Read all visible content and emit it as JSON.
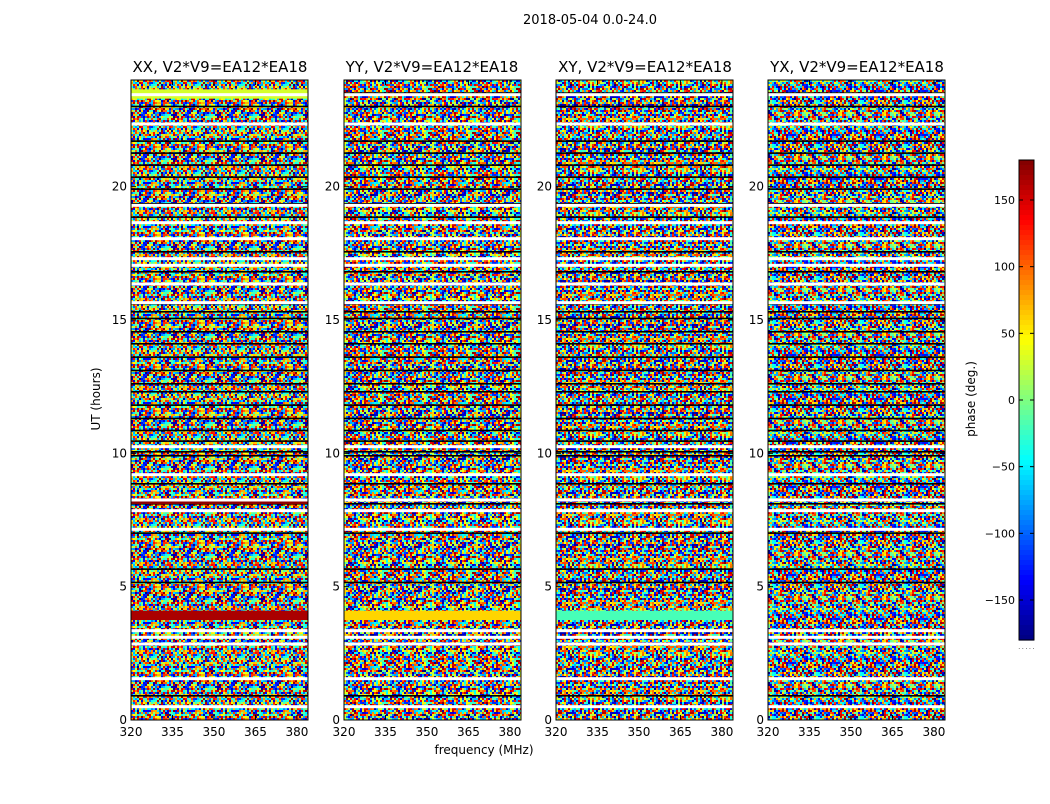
{
  "chart_data": {
    "type": "heatmap",
    "suptitle": "2018-05-04 0.0-24.0",
    "panels": [
      {
        "title": "XX, V2*V9=EA12*EA18"
      },
      {
        "title": "YY, V2*V9=EA12*EA18"
      },
      {
        "title": "XY, V2*V9=EA12*EA18"
      },
      {
        "title": "YX, V2*V9=EA12*EA18"
      }
    ],
    "xlabel": "frequency (MHz)",
    "ylabel": "UT (hours)",
    "xlim": [
      320,
      384
    ],
    "ylim": [
      0,
      24
    ],
    "x_ticks": [
      320,
      335,
      350,
      365,
      380
    ],
    "x_tick_labels": [
      "320",
      "335",
      "350",
      "365",
      "380"
    ],
    "y_ticks": [
      0,
      5,
      10,
      15,
      20
    ],
    "y_tick_labels": [
      "0",
      "5",
      "10",
      "15",
      "20"
    ],
    "colorbar": {
      "label": "phase (deg.)",
      "range": [
        -180,
        180
      ],
      "ticks": [
        -150,
        -100,
        -50,
        0,
        50,
        100,
        150
      ],
      "tick_labels": [
        "−150",
        "−100",
        "−50",
        "0",
        "50",
        "100",
        "150"
      ],
      "colormap": "jet",
      "under_mark": "....."
    },
    "flagged_rows_hours": [
      0.5,
      1.55,
      2.85,
      3.1,
      3.35,
      7.15,
      7.85,
      8.25,
      9.2,
      10.25,
      15.65,
      16.35,
      17.05,
      17.3,
      18.05,
      18.65,
      19.3,
      22.35,
      23.45
    ],
    "gap_rows_hours": [
      0.9,
      5.15,
      5.65,
      7.0,
      8.1,
      8.85,
      9.9,
      10.05,
      10.45,
      10.85,
      11.3,
      11.8,
      12.3,
      12.6,
      13.1,
      13.6,
      14.1,
      14.55,
      15.05,
      15.3,
      15.6,
      16.8,
      17.55,
      18.85,
      19.35,
      19.9,
      20.35,
      20.8,
      21.25,
      21.7,
      23.0,
      23.5
    ],
    "coherent_bands": [
      {
        "panel": "XX",
        "hours": [
          3.75,
          4.1
        ],
        "phase_deg": 165
      },
      {
        "panel": "YY",
        "hours": [
          3.75,
          4.1
        ],
        "phase_deg": 60
      },
      {
        "panel": "XY",
        "hours": [
          3.75,
          4.1
        ],
        "phase_deg": -20
      },
      {
        "panel": "XX",
        "hours": [
          23.3,
          23.65
        ],
        "phase_deg": 30
      },
      {
        "panel": "XX",
        "hours": [
          8.1,
          8.25
        ],
        "phase_deg": 175
      }
    ],
    "colors": {
      "axis": "#000000",
      "flag": "#ffffff",
      "background": "#ffffff"
    }
  }
}
